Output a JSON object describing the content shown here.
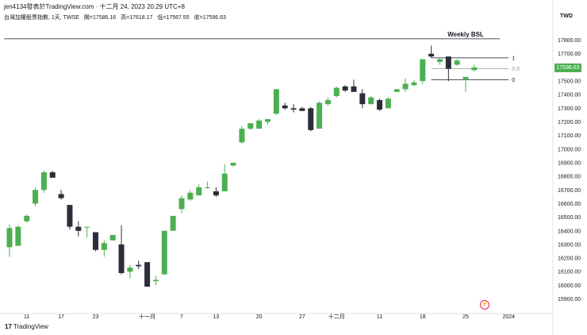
{
  "header": {
    "source": "jen4134發表於TradingView.com",
    "timestamp": "十二月 24, 2023 20:29 UTC+8",
    "symbol": "台灣加權股票指數, 1天, TWSE",
    "open": "開=17586.16",
    "high": "高=17618.17",
    "low": "低=17567.55",
    "close": "收=17596.63"
  },
  "currency": "TWD",
  "footer": {
    "logo_mark": "17",
    "logo_text": "TradingView"
  },
  "colors": {
    "up": "#4caf50",
    "down": "#2a2e39",
    "grid": "#f0f3fa"
  },
  "chart_data": {
    "type": "candlestick",
    "title": "",
    "y_ticks": [
      15900,
      16000,
      16100,
      16200,
      16300,
      16400,
      16500,
      16600,
      16700,
      16800,
      16900,
      17000,
      17100,
      17200,
      17300,
      17400,
      17500,
      17600,
      17700,
      17800
    ],
    "ylim": [
      15810,
      17920
    ],
    "x_ticks": [
      {
        "label": "11",
        "index": 2
      },
      {
        "label": "17",
        "index": 6
      },
      {
        "label": "23",
        "index": 10
      },
      {
        "label": "十一月",
        "index": 16
      },
      {
        "label": "7",
        "index": 20
      },
      {
        "label": "13",
        "index": 24
      },
      {
        "label": "20",
        "index": 29
      },
      {
        "label": "27",
        "index": 34
      },
      {
        "label": "十二月",
        "index": 38
      },
      {
        "label": "11",
        "index": 43
      },
      {
        "label": "18",
        "index": 48
      },
      {
        "label": "25",
        "index": 53
      },
      {
        "label": "2024",
        "index": 58
      }
    ],
    "candles": [
      {
        "o": 16280,
        "h": 16450,
        "l": 16210,
        "c": 16420
      },
      {
        "o": 16290,
        "h": 16440,
        "l": 16290,
        "c": 16430
      },
      {
        "o": 16470,
        "h": 16520,
        "l": 16460,
        "c": 16510
      },
      {
        "o": 16600,
        "h": 16720,
        "l": 16580,
        "c": 16700
      },
      {
        "o": 16700,
        "h": 16840,
        "l": 16680,
        "c": 16830
      },
      {
        "o": 16830,
        "h": 16840,
        "l": 16790,
        "c": 16790
      },
      {
        "o": 16670,
        "h": 16700,
        "l": 16630,
        "c": 16640
      },
      {
        "o": 16590,
        "h": 16590,
        "l": 16410,
        "c": 16430
      },
      {
        "o": 16430,
        "h": 16470,
        "l": 16360,
        "c": 16400
      },
      {
        "o": 16430,
        "h": 16430,
        "l": 16350,
        "c": 16430
      },
      {
        "o": 16390,
        "h": 16390,
        "l": 16250,
        "c": 16260
      },
      {
        "o": 16260,
        "h": 16330,
        "l": 16210,
        "c": 16310
      },
      {
        "o": 16330,
        "h": 16370,
        "l": 16330,
        "c": 16370
      },
      {
        "o": 16300,
        "h": 16440,
        "l": 16080,
        "c": 16090
      },
      {
        "o": 16100,
        "h": 16150,
        "l": 16050,
        "c": 16130
      },
      {
        "o": 16150,
        "h": 16180,
        "l": 16120,
        "c": 16140
      },
      {
        "o": 16170,
        "h": 16170,
        "l": 15990,
        "c": 15990
      },
      {
        "o": 16030,
        "h": 16070,
        "l": 16000,
        "c": 16040
      },
      {
        "o": 16080,
        "h": 16400,
        "l": 16080,
        "c": 16400
      },
      {
        "o": 16400,
        "h": 16510,
        "l": 16400,
        "c": 16510
      },
      {
        "o": 16560,
        "h": 16660,
        "l": 16530,
        "c": 16640
      },
      {
        "o": 16630,
        "h": 16700,
        "l": 16620,
        "c": 16680
      },
      {
        "o": 16660,
        "h": 16740,
        "l": 16660,
        "c": 16720
      },
      {
        "o": 16720,
        "h": 16760,
        "l": 16710,
        "c": 16720
      },
      {
        "o": 16690,
        "h": 16720,
        "l": 16650,
        "c": 16660
      },
      {
        "o": 16690,
        "h": 16890,
        "l": 16690,
        "c": 16820
      },
      {
        "o": 16880,
        "h": 16900,
        "l": 16870,
        "c": 16900
      },
      {
        "o": 17050,
        "h": 17170,
        "l": 17040,
        "c": 17150
      },
      {
        "o": 17150,
        "h": 17190,
        "l": 17140,
        "c": 17190
      },
      {
        "o": 17150,
        "h": 17220,
        "l": 17150,
        "c": 17210
      },
      {
        "o": 17200,
        "h": 17220,
        "l": 17180,
        "c": 17220
      },
      {
        "o": 17260,
        "h": 17440,
        "l": 17250,
        "c": 17440
      },
      {
        "o": 17320,
        "h": 17340,
        "l": 17290,
        "c": 17300
      },
      {
        "o": 17300,
        "h": 17330,
        "l": 17270,
        "c": 17290
      },
      {
        "o": 17300,
        "h": 17310,
        "l": 17280,
        "c": 17280
      },
      {
        "o": 17300,
        "h": 17310,
        "l": 17130,
        "c": 17140
      },
      {
        "o": 17150,
        "h": 17350,
        "l": 17150,
        "c": 17340
      },
      {
        "o": 17330,
        "h": 17380,
        "l": 17320,
        "c": 17360
      },
      {
        "o": 17390,
        "h": 17460,
        "l": 17380,
        "c": 17450
      },
      {
        "o": 17460,
        "h": 17470,
        "l": 17420,
        "c": 17430
      },
      {
        "o": 17460,
        "h": 17510,
        "l": 17420,
        "c": 17420
      },
      {
        "o": 17410,
        "h": 17440,
        "l": 17300,
        "c": 17330
      },
      {
        "o": 17330,
        "h": 17390,
        "l": 17330,
        "c": 17380
      },
      {
        "o": 17360,
        "h": 17370,
        "l": 17280,
        "c": 17290
      },
      {
        "o": 17300,
        "h": 17380,
        "l": 17300,
        "c": 17370
      },
      {
        "o": 17420,
        "h": 17440,
        "l": 17420,
        "c": 17440
      },
      {
        "o": 17440,
        "h": 17520,
        "l": 17420,
        "c": 17480
      },
      {
        "o": 17470,
        "h": 17510,
        "l": 17460,
        "c": 17490
      },
      {
        "o": 17500,
        "h": 17660,
        "l": 17480,
        "c": 17660
      },
      {
        "o": 17700,
        "h": 17760,
        "l": 17670,
        "c": 17680
      },
      {
        "o": 17640,
        "h": 17670,
        "l": 17620,
        "c": 17660
      },
      {
        "o": 17680,
        "h": 17680,
        "l": 17500,
        "c": 17590
      },
      {
        "o": 17620,
        "h": 17660,
        "l": 17610,
        "c": 17650
      },
      {
        "o": 17510,
        "h": 17530,
        "l": 17420,
        "c": 17530
      },
      {
        "o": 17580,
        "h": 17620,
        "l": 17570,
        "c": 17600
      }
    ],
    "weekly_bsl": {
      "label": "Weekly BSL",
      "level": 17810
    },
    "fib": {
      "levels": [
        {
          "label": "1",
          "value": 17670
        },
        {
          "label": "0.5",
          "value": 17590
        },
        {
          "label": "0",
          "value": 17510
        }
      ],
      "start_index": 49,
      "end_index": 58
    },
    "last_price": {
      "label": "17596.63",
      "value": 17596.63
    }
  }
}
